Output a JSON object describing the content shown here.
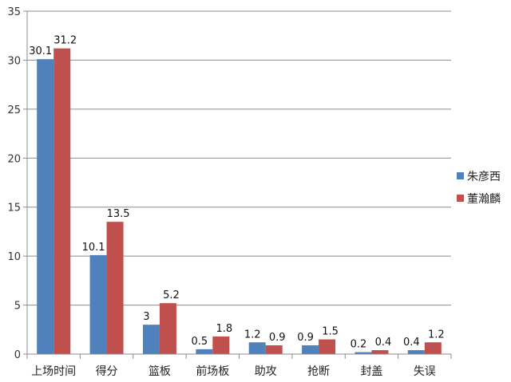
{
  "chart_data": {
    "type": "bar",
    "categories": [
      "上场时间",
      "得分",
      "篮板",
      "前场板",
      "助攻",
      "抢断",
      "封盖",
      "失误"
    ],
    "series": [
      {
        "name": "朱彦西",
        "color": "#4f81bd",
        "values": [
          30.1,
          10.1,
          3,
          0.5,
          1.2,
          0.9,
          0.2,
          0.4
        ]
      },
      {
        "name": "董瀚麟",
        "color": "#c0504d",
        "values": [
          31.2,
          13.5,
          5.2,
          1.8,
          0.9,
          1.5,
          0.4,
          1.2
        ]
      }
    ],
    "ylim": [
      0,
      35
    ],
    "yticks": [
      0,
      5,
      10,
      15,
      20,
      25,
      30,
      35
    ],
    "grid": true,
    "legend": "right"
  }
}
